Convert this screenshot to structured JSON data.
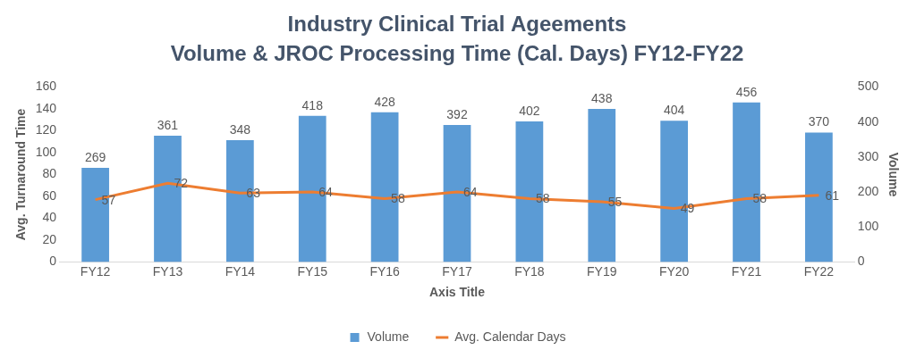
{
  "chart_data": {
    "type": "bar",
    "title": "Industry Clinical Trial Ageements",
    "subtitle": "Volume & JROC Processing Time (Cal. Days) FY12-FY22",
    "x_label": "Axis Title",
    "y_label": "Avg. Turnaround Time",
    "y2_label": "Volume",
    "categories": [
      "FY12",
      "FY13",
      "FY14",
      "FY15",
      "FY16",
      "FY17",
      "FY18",
      "FY19",
      "FY20",
      "FY21",
      "FY22"
    ],
    "series": [
      {
        "name": "Volume",
        "type": "bar",
        "color": "#5b9bd5",
        "axis": "y2",
        "values": [
          269,
          361,
          348,
          418,
          428,
          392,
          402,
          438,
          404,
          456,
          370
        ]
      },
      {
        "name": "Avg. Calendar Days",
        "type": "line",
        "color": "#ed7d31",
        "values": [
          57,
          72,
          63,
          64,
          58,
          64,
          58,
          55,
          49,
          58,
          61
        ]
      }
    ],
    "ylim": [
      0,
      160
    ],
    "yticks": [
      0,
      20,
      40,
      60,
      80,
      100,
      120,
      140,
      160
    ],
    "y2lim": [
      0,
      500
    ],
    "y2ticks": [
      0,
      100,
      200,
      300,
      400,
      500
    ],
    "grid": false,
    "legend": "bottom",
    "data_labels": true
  }
}
